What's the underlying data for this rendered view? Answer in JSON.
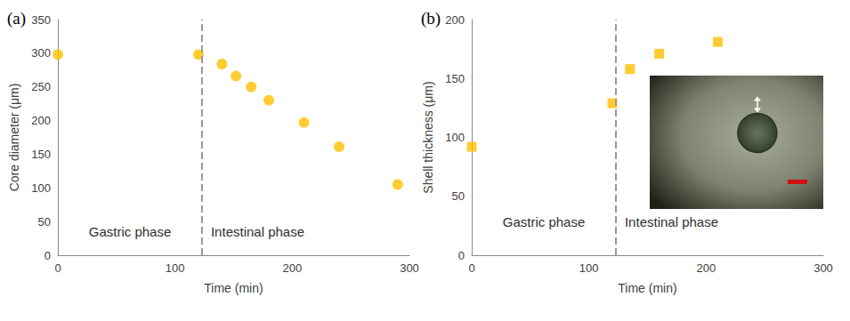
{
  "chart_data": [
    {
      "type": "scatter",
      "title": "(a)",
      "xlabel": "Time (min)",
      "ylabel": "Core diameter (μm)",
      "x": [
        0,
        120,
        140,
        152,
        165,
        180,
        210,
        240,
        290
      ],
      "values": [
        298,
        298,
        284,
        266,
        250,
        230,
        197,
        161,
        105
      ],
      "color": "#ffc000",
      "marker": "circle",
      "xlim": [
        0,
        300
      ],
      "xticks": [
        0,
        100,
        200,
        300
      ],
      "ylim": [
        0,
        350
      ],
      "yticks": [
        0,
        50,
        100,
        150,
        200,
        250,
        300,
        350
      ],
      "grid": false,
      "phase_boundary": 123,
      "annotations": [
        "Gastric phase",
        "Intestinal phase"
      ]
    },
    {
      "type": "scatter",
      "title": "(b)",
      "xlabel": "Time (min)",
      "ylabel": "Shell thickness (μm)",
      "x": [
        0,
        120,
        135,
        160,
        210
      ],
      "values": [
        92,
        129,
        158,
        171,
        181
      ],
      "color": "#ffc000",
      "marker": "square",
      "xlim": [
        0,
        300
      ],
      "xticks": [
        0,
        100,
        200,
        300
      ],
      "ylim": [
        0,
        200
      ],
      "yticks": [
        0,
        50,
        100,
        150,
        200
      ],
      "grid": false,
      "phase_boundary": 123,
      "annotations": [
        "Gastric phase",
        "Intestinal phase"
      ]
    }
  ]
}
